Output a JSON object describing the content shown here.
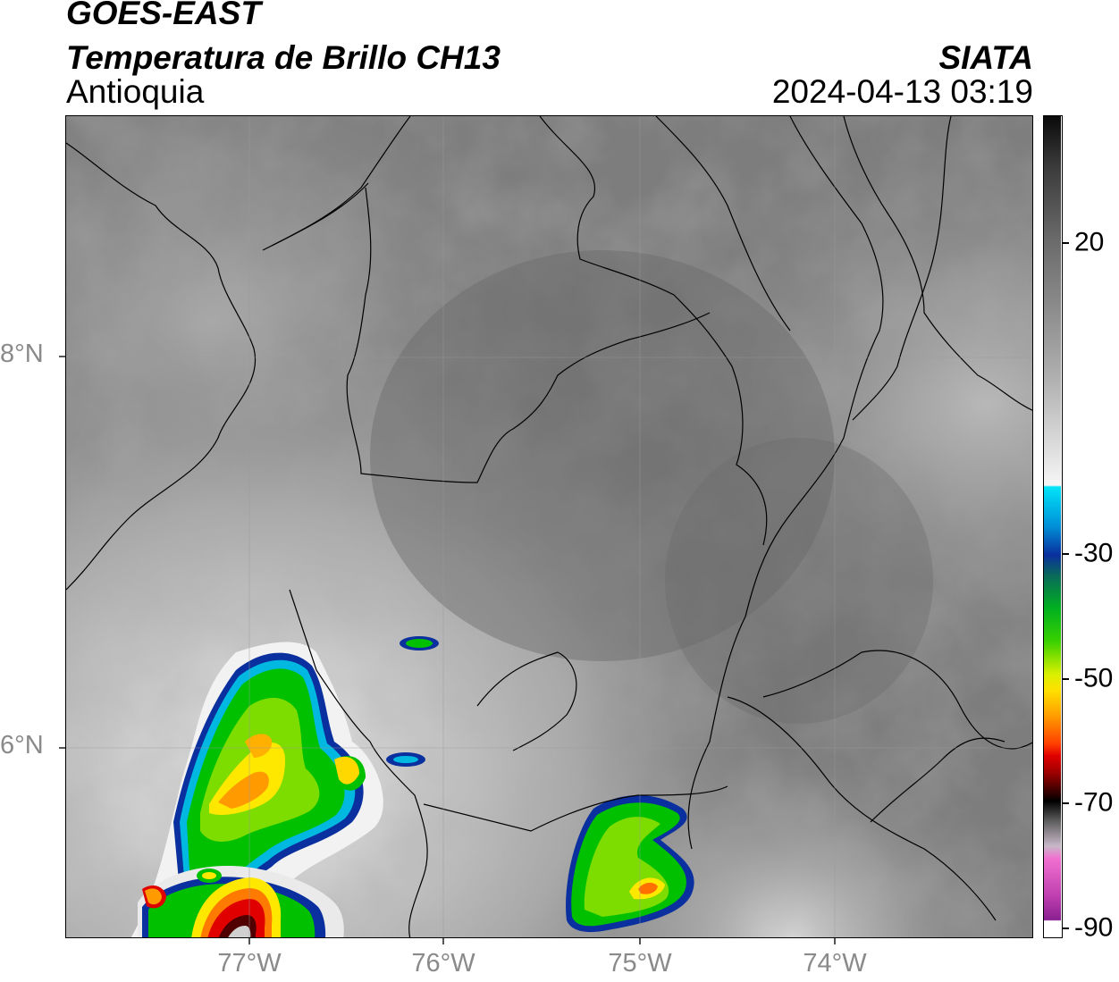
{
  "header": {
    "satellite": "GOES-EAST",
    "product": "Temperatura de Brillo CH13",
    "region": "Antioquia",
    "organization": "SIATA",
    "datetime": "2024-04-13 03:19"
  },
  "axes": {
    "lat_ticks": [
      {
        "label": "8°N",
        "value": 8
      },
      {
        "label": "6°N",
        "value": 6
      }
    ],
    "lon_ticks": [
      {
        "label": "77°W",
        "value": -77
      },
      {
        "label": "76°W",
        "value": -76
      },
      {
        "label": "75°W",
        "value": -75
      },
      {
        "label": "74°W",
        "value": -74
      }
    ],
    "lat_range": [
      5.0,
      9.2
    ],
    "lon_range": [
      -77.95,
      -73.0
    ]
  },
  "colorbar": {
    "ticks": [
      {
        "label": "20",
        "value": 20
      },
      {
        "label": "-30",
        "value": -30
      },
      {
        "label": "-50",
        "value": -50
      },
      {
        "label": "-70",
        "value": -70
      },
      {
        "label": "-90",
        "value": -90
      }
    ],
    "range": [
      -90,
      40
    ],
    "colors": {
      "warm_top": "#111111",
      "gray_mid": "#8c8c8c",
      "white": "#f5f5f5",
      "cyan": "#00d8f0",
      "blue": "#0a2f9e",
      "green": "#00c000",
      "yellow": "#ffe800",
      "orange": "#ff9a00",
      "red": "#e00000",
      "black": "#000000",
      "pink": "#f060d0",
      "magenta": "#9020a0"
    }
  }
}
